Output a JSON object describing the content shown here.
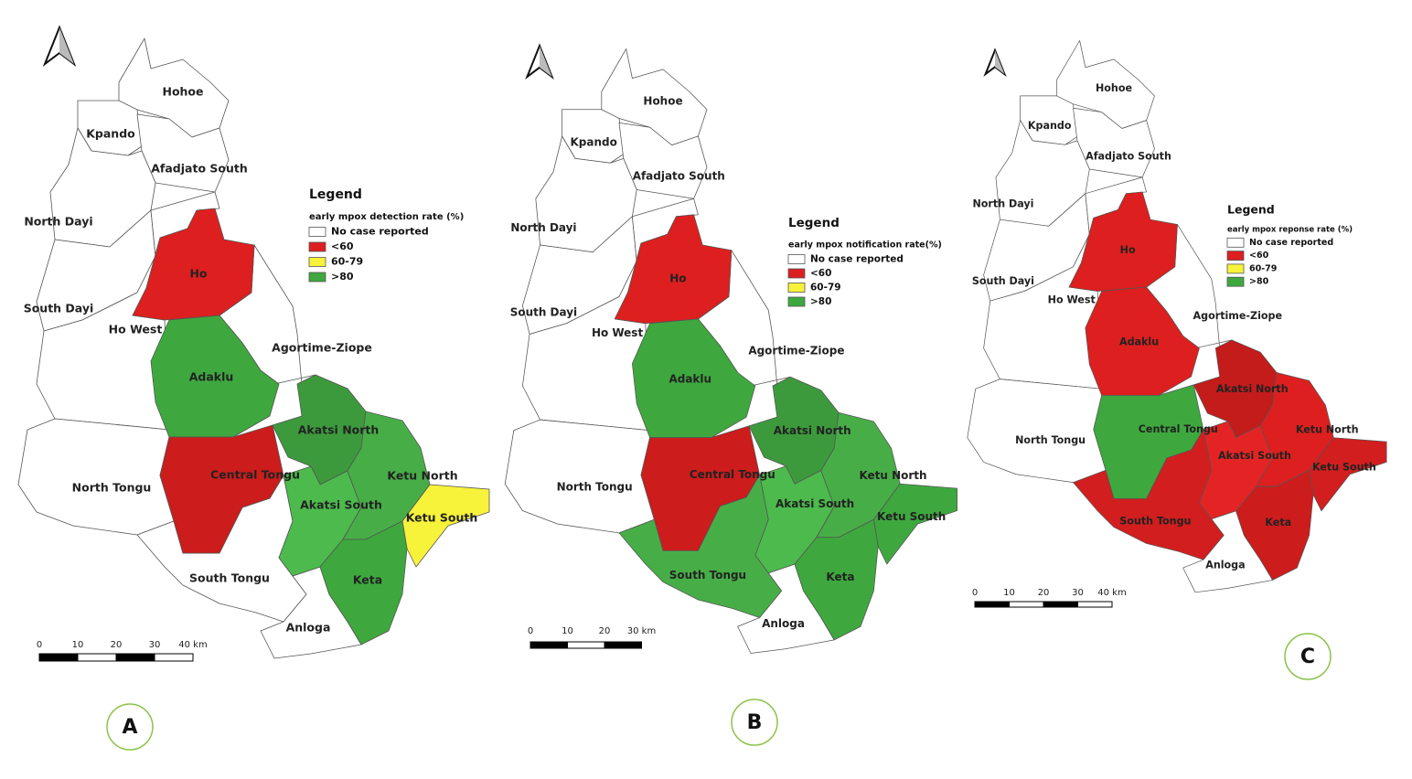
{
  "panels": [
    {
      "label": "A",
      "legend": {
        "title": "Legend",
        "subtitle": "early mpox detection rate (%)",
        "entries": [
          {
            "label": "No case reported",
            "color": "#ffffff"
          },
          {
            "label": "<60",
            "color": "#dd1f1f"
          },
          {
            "label": "60-79",
            "color": "#f7f23a"
          },
          {
            "label": ">80",
            "color": "#3ea83e"
          }
        ]
      },
      "scale": {
        "ticks": [
          0,
          10,
          20,
          30,
          {
            "value": 40,
            "label": "40 km"
          }
        ]
      },
      "districts": [
        {
          "name": "Hohoe",
          "color": "#ffffff"
        },
        {
          "name": "Kpando",
          "color": "#ffffff"
        },
        {
          "name": "Afadjato South",
          "color": "#ffffff"
        },
        {
          "name": "North Dayi",
          "color": "#ffffff"
        },
        {
          "name": "South Dayi",
          "color": "#ffffff"
        },
        {
          "name": "Ho",
          "color": "#dd1f1f"
        },
        {
          "name": "Ho West",
          "color": "#ffffff"
        },
        {
          "name": "Agortime-Ziope",
          "color": "#ffffff"
        },
        {
          "name": "Adaklu",
          "color": "#3ea83e"
        },
        {
          "name": "Central Tongu",
          "color": "#cc1c1c"
        },
        {
          "name": "North Tongu",
          "color": "#ffffff"
        },
        {
          "name": "Akatsi North",
          "color": "#3c9a3c"
        },
        {
          "name": "Akatsi South",
          "color": "#4cba4c"
        },
        {
          "name": "Ketu North",
          "color": "#47ae47"
        },
        {
          "name": "Ketu South",
          "color": "#f7f23a"
        },
        {
          "name": "Keta",
          "color": "#3ea83e"
        },
        {
          "name": "South Tongu",
          "color": "#ffffff"
        },
        {
          "name": "Anloga",
          "color": "#ffffff"
        }
      ]
    },
    {
      "label": "B",
      "legend": {
        "title": "Legend",
        "subtitle": "early mpox notification rate(%)",
        "entries": [
          {
            "label": "No case reported",
            "color": "#ffffff"
          },
          {
            "label": "<60",
            "color": "#dd1f1f"
          },
          {
            "label": "60-79",
            "color": "#f7f23a"
          },
          {
            "label": ">80",
            "color": "#3ea83e"
          }
        ]
      },
      "scale": {
        "ticks": [
          0,
          10,
          20,
          {
            "value": 30,
            "label": "30 km"
          }
        ]
      },
      "districts": [
        {
          "name": "Hohoe",
          "color": "#ffffff"
        },
        {
          "name": "Kpando",
          "color": "#ffffff"
        },
        {
          "name": "Afadjato South",
          "color": "#ffffff"
        },
        {
          "name": "North Dayi",
          "color": "#ffffff"
        },
        {
          "name": "South Dayi",
          "color": "#ffffff"
        },
        {
          "name": "Ho",
          "color": "#dd1f1f"
        },
        {
          "name": "Ho West",
          "color": "#ffffff"
        },
        {
          "name": "Agortime-Ziope",
          "color": "#ffffff"
        },
        {
          "name": "Adaklu",
          "color": "#3ea83e"
        },
        {
          "name": "Central Tongu",
          "color": "#cc1c1c"
        },
        {
          "name": "North Tongu",
          "color": "#ffffff"
        },
        {
          "name": "Akatsi North",
          "color": "#3c9a3c"
        },
        {
          "name": "Akatsi South",
          "color": "#4cba4c"
        },
        {
          "name": "Ketu North",
          "color": "#47ae47"
        },
        {
          "name": "Ketu South",
          "color": "#3ea83e"
        },
        {
          "name": "Keta",
          "color": "#3ea83e"
        },
        {
          "name": "South Tongu",
          "color": "#47ae47"
        },
        {
          "name": "Anloga",
          "color": "#ffffff"
        }
      ]
    },
    {
      "label": "C",
      "legend": {
        "title": "Legend",
        "subtitle": "early mpox reponse rate (%)",
        "entries": [
          {
            "label": "No case reported",
            "color": "#ffffff"
          },
          {
            "label": "<60",
            "color": "#dd1f1f"
          },
          {
            "label": "60-79",
            "color": "#f7f23a"
          },
          {
            "label": ">80",
            "color": "#3ea83e"
          }
        ]
      },
      "scale": {
        "ticks": [
          0,
          10,
          20,
          30,
          {
            "value": 40,
            "label": "40 km"
          }
        ]
      },
      "districts": [
        {
          "name": "Hohoe",
          "color": "#ffffff"
        },
        {
          "name": "Kpando",
          "color": "#ffffff"
        },
        {
          "name": "Afadjato South",
          "color": "#ffffff"
        },
        {
          "name": "North Dayi",
          "color": "#ffffff"
        },
        {
          "name": "South Dayi",
          "color": "#ffffff"
        },
        {
          "name": "Ho",
          "color": "#dd1f1f"
        },
        {
          "name": "Ho West",
          "color": "#ffffff"
        },
        {
          "name": "Agortime-Ziope",
          "color": "#ffffff"
        },
        {
          "name": "Adaklu",
          "color": "#dd1f1f"
        },
        {
          "name": "Central Tongu",
          "color": "#3ea83e"
        },
        {
          "name": "North Tongu",
          "color": "#ffffff"
        },
        {
          "name": "Akatsi North",
          "color": "#c41b1b"
        },
        {
          "name": "Akatsi South",
          "color": "#e42424"
        },
        {
          "name": "Ketu North",
          "color": "#dd1f1f"
        },
        {
          "name": "Ketu South",
          "color": "#d21e1e"
        },
        {
          "name": "Keta",
          "color": "#cc1c1c"
        },
        {
          "name": "South Tongu",
          "color": "#d21e1e"
        },
        {
          "name": "Anloga",
          "color": "#ffffff"
        }
      ]
    }
  ]
}
